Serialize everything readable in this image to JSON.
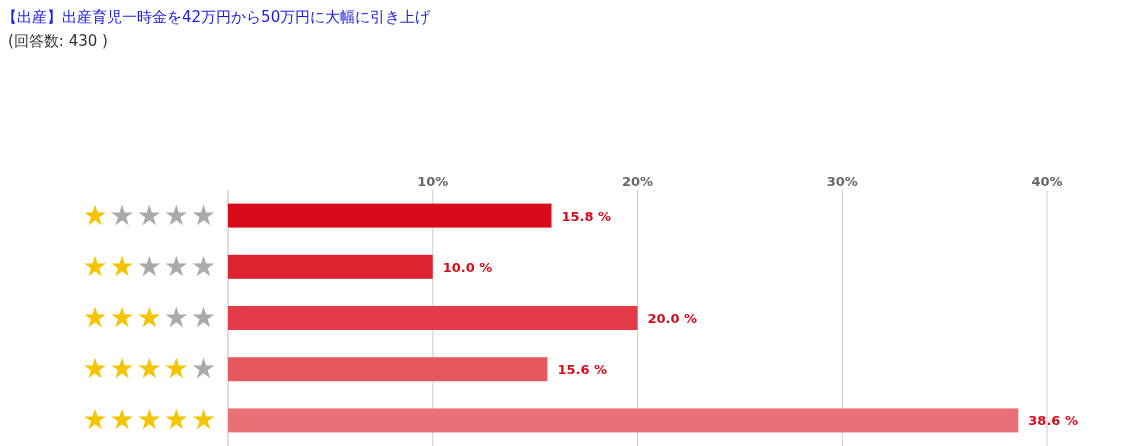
{
  "chart_data": {
    "type": "bar",
    "orientation": "horizontal",
    "title": "【出産】出産育児一時金を42万円から50万円に大幅に引き上げ",
    "subtitle": "(回答数: 430 )",
    "categories": [
      "★★★★★",
      "★★★★★",
      "★★★★★",
      "★★★★★",
      "★★★★★"
    ],
    "values": [
      15.8,
      10.0,
      20.0,
      15.6,
      38.6
    ],
    "colors": [
      "#d90b1a",
      "#dd2430",
      "#e33c48",
      "#e5585f",
      "#e97076"
    ],
    "value_labels": [
      "15.8 %",
      "10.0 %",
      "20.0 %",
      "15.6 %",
      "38.6 %"
    ],
    "xlim": [
      0,
      40
    ],
    "xticks": [
      {
        "value": 10,
        "label": "10%"
      },
      {
        "value": 20,
        "label": "20%"
      },
      {
        "value": 30,
        "label": "30%"
      },
      {
        "value": 40,
        "label": "40%"
      }
    ],
    "grid": "x"
  }
}
